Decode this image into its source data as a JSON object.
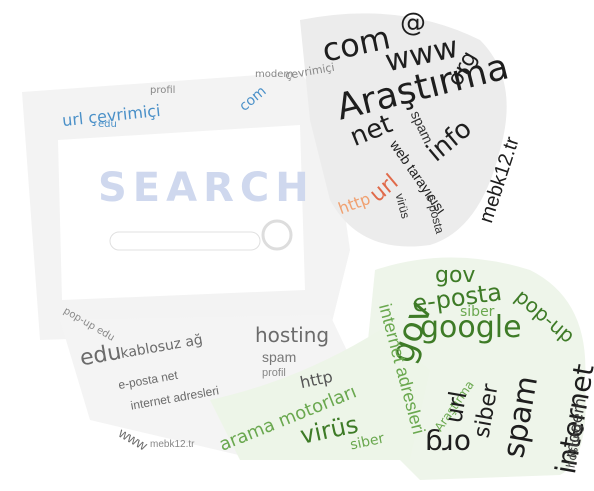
{
  "colors": {
    "dark": "#1e1e1e",
    "grey": "#6b6b6b",
    "light": "#b5b5b5",
    "green": "#6aa84f",
    "green_dark": "#3e7b27",
    "blue": "#4a90c8",
    "red": "#e06a4a",
    "orange": "#f0a070"
  },
  "words": {
    "arastirma": "Araştırma",
    "com_1": "com",
    "www_1": "www",
    "org_1": "org",
    "net_1": "net",
    "info_1": "info",
    "mebk12_1": "mebk12.tr",
    "web_tarayici_1": "web tarayıcısı",
    "spam_1": "spam",
    "eposta_1": "e-posta",
    "virus_1": "virüs",
    "url_1": "url",
    "http_1": "http",
    "url_cevrimici": "url çevrimiçi",
    "edu_1": "edu",
    "profil_1": "profil",
    "modem_1": "modem",
    "hosting_1": "hosting",
    "kablosuz_ag": "kablosuz ağ",
    "internet_adresleri_1": "internet adresleri",
    "eposta_net": "e-posta net",
    "popup_1": "pop-up",
    "gov_1": "gov",
    "eposta_2": "e-posta",
    "siber_1": "siber",
    "google_1": "google",
    "popup_2": "pop-up",
    "at_1": "@",
    "gov_2": "gov",
    "internet_adresleri_2": "internet adresleri",
    "virus_2": "virüs",
    "arama_motorlari": "arama motorları",
    "siber_2": "siber",
    "com_2": "com",
    "org_2": "org",
    "url_2": "url",
    "siber_3": "siber",
    "spam_2": "spam",
    "internet_1": "internet",
    "modem_2": "modem",
    "hosting_2": "hosting",
    "edu_2": "edu",
    "www_2": "www",
    "mebk12_2": "mebk12.tr",
    "http_2": "http",
    "spam_3": "spam",
    "profil_2": "profil",
    "search": "SEARCH",
    "popup_edu": "pop-up edu",
    "cevrimici": "çevrimiçi",
    "arastirma_2": "Araştırma"
  }
}
